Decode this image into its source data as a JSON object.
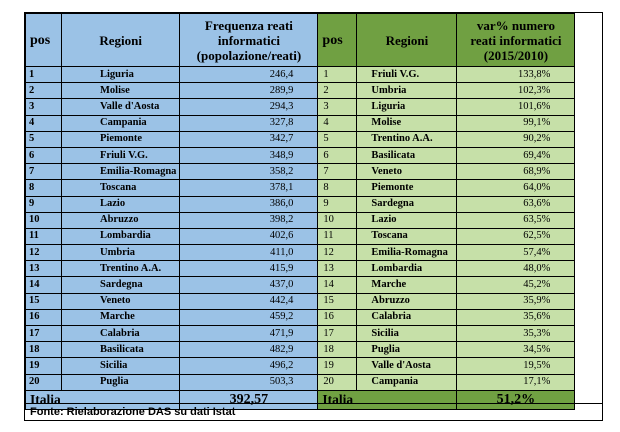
{
  "headers": {
    "pos": "pos",
    "regioni": "Regioni",
    "freq_line1": "Frequenza reati",
    "freq_line2": "informatici",
    "freq_line3": "(popolazione/reati)",
    "var_line1": "var% numero",
    "var_line2": "reati informatici",
    "var_line3": "(2015/2010)"
  },
  "left_rows": [
    {
      "pos": "1",
      "region": "Liguria",
      "value": "246,4"
    },
    {
      "pos": "2",
      "region": "Molise",
      "value": "289,9"
    },
    {
      "pos": "3",
      "region": "Valle d'Aosta",
      "value": "294,3"
    },
    {
      "pos": "4",
      "region": "Campania",
      "value": "327,8"
    },
    {
      "pos": "5",
      "region": "Piemonte",
      "value": "342,7"
    },
    {
      "pos": "6",
      "region": "Friuli V.G.",
      "value": "348,9"
    },
    {
      "pos": "7",
      "region": "Emilia-Romagna",
      "value": "358,2"
    },
    {
      "pos": "8",
      "region": "Toscana",
      "value": "378,1"
    },
    {
      "pos": "9",
      "region": "Lazio",
      "value": "386,0"
    },
    {
      "pos": "10",
      "region": "Abruzzo",
      "value": "398,2"
    },
    {
      "pos": "11",
      "region": "Lombardia",
      "value": "402,6"
    },
    {
      "pos": "12",
      "region": "Umbria",
      "value": "411,0"
    },
    {
      "pos": "13",
      "region": "Trentino A.A.",
      "value": "415,9"
    },
    {
      "pos": "14",
      "region": "Sardegna",
      "value": "437,0"
    },
    {
      "pos": "15",
      "region": "Veneto",
      "value": "442,4"
    },
    {
      "pos": "16",
      "region": "Marche",
      "value": "459,2"
    },
    {
      "pos": "17",
      "region": "Calabria",
      "value": "471,9"
    },
    {
      "pos": "18",
      "region": "Basilicata",
      "value": "482,9"
    },
    {
      "pos": "19",
      "region": "Sicilia",
      "value": "496,2"
    },
    {
      "pos": "20",
      "region": "Puglia",
      "value": "503,3"
    }
  ],
  "right_rows": [
    {
      "pos": "1",
      "region": "Friuli V.G.",
      "value": "133,8%"
    },
    {
      "pos": "2",
      "region": "Umbria",
      "value": "102,3%"
    },
    {
      "pos": "3",
      "region": "Liguria",
      "value": "101,6%"
    },
    {
      "pos": "4",
      "region": "Molise",
      "value": "99,1%"
    },
    {
      "pos": "5",
      "region": "Trentino A.A.",
      "value": "90,2%"
    },
    {
      "pos": "6",
      "region": "Basilicata",
      "value": "69,4%"
    },
    {
      "pos": "7",
      "region": "Veneto",
      "value": "68,9%"
    },
    {
      "pos": "8",
      "region": "Piemonte",
      "value": "64,0%"
    },
    {
      "pos": "9",
      "region": "Sardegna",
      "value": "63,6%"
    },
    {
      "pos": "10",
      "region": "Lazio",
      "value": "63,5%"
    },
    {
      "pos": "11",
      "region": "Toscana",
      "value": "62,5%"
    },
    {
      "pos": "12",
      "region": "Emilia-Romagna",
      "value": "57,4%"
    },
    {
      "pos": "13",
      "region": "Lombardia",
      "value": "48,0%"
    },
    {
      "pos": "14",
      "region": "Marche",
      "value": "45,2%"
    },
    {
      "pos": "15",
      "region": "Abruzzo",
      "value": "35,9%"
    },
    {
      "pos": "16",
      "region": "Calabria",
      "value": "35,6%"
    },
    {
      "pos": "17",
      "region": "Sicilia",
      "value": "35,3%"
    },
    {
      "pos": "18",
      "region": "Puglia",
      "value": "34,5%"
    },
    {
      "pos": "19",
      "region": "Valle d'Aosta",
      "value": "19,5%"
    },
    {
      "pos": "20",
      "region": "Campania",
      "value": "17,1%"
    }
  ],
  "totals": {
    "left_label": "Italia",
    "left_value": "392,57",
    "right_label": "Italia",
    "right_value": "51,2%"
  },
  "source": "Fonte: Rielaborazione DAS su dati Istat",
  "colors": {
    "blue": "#9bc2e6",
    "light_green": "#c6e0a8",
    "dark_green": "#70a042"
  }
}
